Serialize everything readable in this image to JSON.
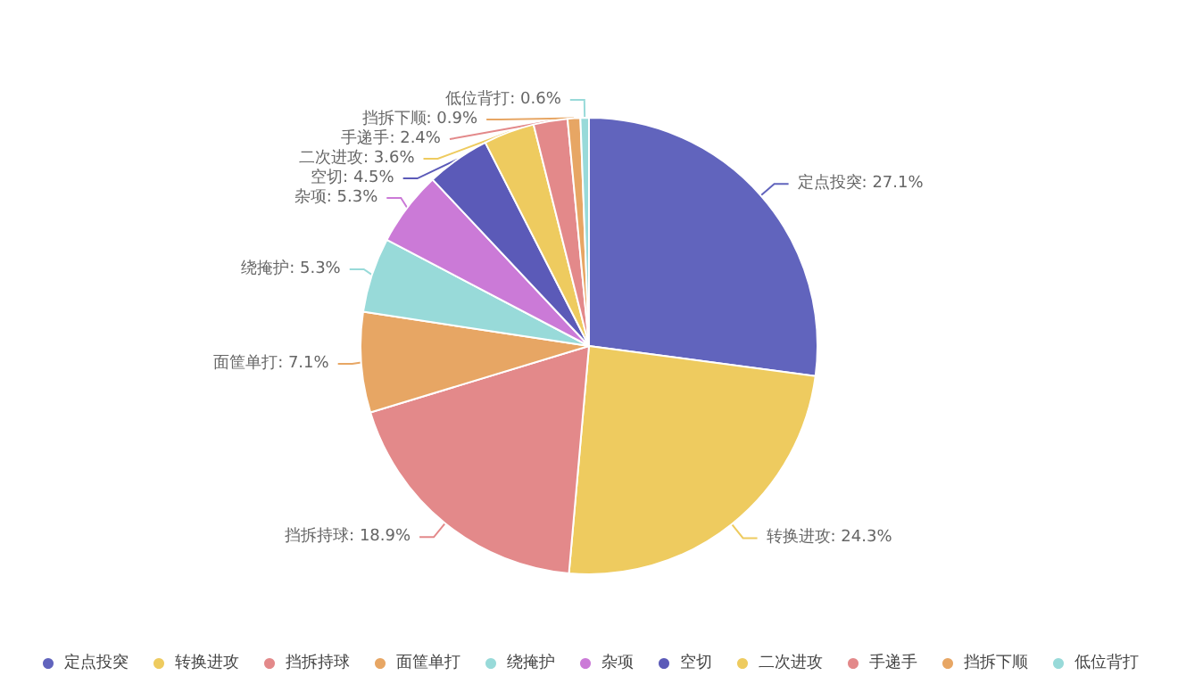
{
  "chart_data": {
    "type": "pie",
    "categories": [
      "定点投突",
      "转换进攻",
      "挡拆持球",
      "面筐单打",
      "绕掩护",
      "杂项",
      "空切",
      "二次进攻",
      "手递手",
      "挡拆下顺",
      "低位背打"
    ],
    "values": [
      27.1,
      24.3,
      18.9,
      7.1,
      5.3,
      5.3,
      4.5,
      3.6,
      2.4,
      0.9,
      0.6
    ],
    "value_labels": [
      "定点投突: 27.1%",
      "转换进攻: 24.3%",
      "挡拆持球: 18.9%",
      "面筐单打: 7.1%",
      "绕掩护: 5.3%",
      "杂项: 5.3%",
      "空切: 4.5%",
      "二次进攻: 3.6%",
      "手递手: 2.4%",
      "挡拆下顺: 0.9%",
      "低位背打: 0.6%"
    ],
    "colors": [
      "#6164bd",
      "#eecb5f",
      "#e3898a",
      "#e7a664",
      "#98dad9",
      "#cb7ad7",
      "#5b5ab8",
      "#eecb5f",
      "#e3898a",
      "#e7a664",
      "#98dad9"
    ],
    "legend": "bottom"
  }
}
